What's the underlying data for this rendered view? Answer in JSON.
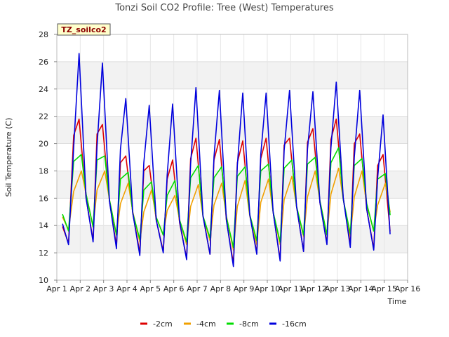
{
  "chart_data": {
    "type": "line",
    "title": "Tonzi Soil CO2 Profile: Tree (West) Temperatures",
    "xlabel": "Time",
    "ylabel": "Soil Temperature (C)",
    "badge": "TZ_soilco2",
    "ylim": [
      10,
      28
    ],
    "xlim": [
      1,
      16
    ],
    "x_ticks": [
      1,
      2,
      3,
      4,
      5,
      6,
      7,
      8,
      9,
      10,
      11,
      12,
      13,
      14,
      15,
      16
    ],
    "x_tick_labels": [
      "Apr 1",
      "Apr 2",
      "Apr 3",
      "Apr 4",
      "Apr 5",
      "Apr 6",
      "Apr 7",
      "Apr 8",
      "Apr 9",
      "Apr 10",
      "Apr 11",
      "Apr 12",
      "Apr 13",
      "Apr 14",
      "Apr 15",
      "Apr 16"
    ],
    "y_ticks": [
      10,
      12,
      14,
      16,
      18,
      20,
      22,
      24,
      26,
      28
    ],
    "grid": true,
    "legend_position": "bottom",
    "series": [
      {
        "name": "-2cm",
        "color": "#dd0000",
        "x": [
          1.25,
          1.5,
          1.72,
          1.95,
          2.25,
          2.55,
          2.72,
          2.95,
          3.25,
          3.55,
          3.72,
          3.95,
          4.25,
          4.55,
          4.72,
          4.95,
          5.25,
          5.55,
          5.72,
          5.95,
          6.25,
          6.55,
          6.72,
          6.95,
          7.25,
          7.55,
          7.72,
          7.95,
          8.25,
          8.55,
          8.72,
          8.95,
          9.25,
          9.55,
          9.72,
          9.95,
          10.25,
          10.55,
          10.72,
          10.95,
          11.25,
          11.55,
          11.72,
          11.95,
          12.25,
          12.55,
          12.72,
          12.95,
          13.25,
          13.55,
          13.72,
          13.95,
          14.25,
          14.55,
          14.72,
          14.95,
          15.25
        ],
        "y": [
          13.9,
          12.7,
          20.6,
          21.8,
          16.0,
          12.9,
          20.7,
          21.4,
          15.8,
          12.5,
          18.6,
          19.1,
          14.9,
          12.0,
          18.0,
          18.4,
          14.4,
          12.1,
          17.4,
          18.8,
          14.2,
          11.6,
          18.9,
          20.4,
          14.7,
          11.9,
          18.8,
          20.3,
          14.4,
          11.2,
          18.6,
          20.2,
          14.8,
          12.0,
          18.9,
          20.4,
          15.0,
          11.5,
          19.9,
          20.4,
          15.4,
          12.1,
          20.1,
          21.1,
          15.7,
          12.7,
          20.3,
          21.8,
          16.0,
          12.6,
          20.0,
          20.7,
          15.2,
          12.3,
          18.4,
          19.2,
          13.6
        ]
      },
      {
        "name": "-4cm",
        "color": "#f0a000",
        "x": [
          1.25,
          1.5,
          1.72,
          2.05,
          2.25,
          2.55,
          2.72,
          3.05,
          3.25,
          3.55,
          3.72,
          4.05,
          4.25,
          4.55,
          4.72,
          5.05,
          5.25,
          5.55,
          5.72,
          6.05,
          6.25,
          6.55,
          6.72,
          7.05,
          7.25,
          7.55,
          7.72,
          8.05,
          8.25,
          8.55,
          8.72,
          9.05,
          9.25,
          9.55,
          9.72,
          10.05,
          10.25,
          10.55,
          10.72,
          11.05,
          11.25,
          11.55,
          11.72,
          12.05,
          12.25,
          12.55,
          12.72,
          13.05,
          13.25,
          13.55,
          13.72,
          14.05,
          14.25,
          14.55,
          14.72,
          15.05,
          15.25
        ],
        "y": [
          14.6,
          13.7,
          16.5,
          18.0,
          16.3,
          13.9,
          16.6,
          18.0,
          15.9,
          13.3,
          15.6,
          17.1,
          15.0,
          12.8,
          15.0,
          16.6,
          14.6,
          13.3,
          15.1,
          16.2,
          14.4,
          12.6,
          15.4,
          17.0,
          14.7,
          12.9,
          15.5,
          17.1,
          14.7,
          12.2,
          15.4,
          17.3,
          14.7,
          12.6,
          15.7,
          17.4,
          15.0,
          12.6,
          15.9,
          17.6,
          15.4,
          13.2,
          16.1,
          18.0,
          15.8,
          13.3,
          16.3,
          18.2,
          15.9,
          13.2,
          16.1,
          18.0,
          15.5,
          13.6,
          15.5,
          17.1,
          15.0
        ]
      },
      {
        "name": "-8cm",
        "color": "#00dd00",
        "x": [
          1.25,
          1.5,
          1.72,
          2.05,
          2.25,
          2.55,
          2.72,
          3.05,
          3.25,
          3.55,
          3.72,
          4.05,
          4.25,
          4.55,
          4.72,
          5.05,
          5.25,
          5.55,
          5.72,
          6.05,
          6.25,
          6.55,
          6.72,
          7.05,
          7.25,
          7.55,
          7.72,
          8.05,
          8.25,
          8.55,
          8.72,
          9.05,
          9.25,
          9.55,
          9.72,
          10.05,
          10.25,
          10.55,
          10.72,
          11.05,
          11.25,
          11.55,
          11.72,
          12.05,
          12.25,
          12.55,
          12.72,
          13.05,
          13.25,
          13.55,
          13.72,
          14.05,
          14.25,
          14.55,
          14.72,
          15.05,
          15.25
        ],
        "y": [
          14.8,
          13.6,
          18.7,
          19.2,
          16.3,
          13.9,
          18.8,
          19.1,
          15.9,
          13.3,
          17.4,
          17.9,
          14.9,
          13.0,
          16.6,
          17.2,
          14.6,
          13.3,
          16.2,
          17.3,
          14.4,
          12.8,
          17.5,
          18.4,
          14.7,
          13.1,
          17.5,
          18.3,
          14.6,
          12.4,
          17.6,
          18.3,
          14.8,
          12.9,
          18.0,
          18.5,
          15.0,
          12.8,
          18.2,
          18.8,
          15.4,
          13.3,
          18.5,
          19.0,
          15.8,
          13.3,
          18.6,
          19.7,
          15.9,
          13.4,
          18.4,
          18.9,
          15.6,
          13.6,
          17.4,
          17.8,
          14.8
        ]
      },
      {
        "name": "-16cm",
        "color": "#0000dd",
        "x": [
          1.25,
          1.5,
          1.72,
          1.95,
          2.25,
          2.55,
          2.72,
          2.95,
          3.25,
          3.55,
          3.72,
          3.95,
          4.25,
          4.55,
          4.72,
          4.95,
          5.25,
          5.55,
          5.72,
          5.95,
          6.25,
          6.55,
          6.72,
          6.95,
          7.25,
          7.55,
          7.72,
          7.95,
          8.25,
          8.55,
          8.72,
          8.95,
          9.25,
          9.55,
          9.72,
          9.95,
          10.25,
          10.55,
          10.72,
          10.95,
          11.25,
          11.55,
          11.72,
          11.95,
          12.25,
          12.55,
          12.72,
          12.95,
          13.25,
          13.55,
          13.72,
          13.95,
          14.25,
          14.55,
          14.72,
          14.95,
          15.25
        ],
        "y": [
          14.1,
          12.6,
          19.7,
          26.6,
          16.0,
          12.8,
          19.8,
          25.9,
          15.8,
          12.3,
          19.6,
          23.3,
          14.9,
          11.8,
          18.6,
          22.8,
          14.4,
          12.0,
          17.7,
          22.9,
          14.3,
          11.5,
          18.5,
          24.1,
          14.7,
          11.9,
          19.0,
          23.9,
          14.4,
          11.0,
          18.4,
          23.7,
          14.8,
          11.9,
          19.2,
          23.7,
          15.0,
          11.4,
          19.5,
          23.9,
          15.4,
          12.1,
          19.6,
          23.8,
          15.7,
          12.6,
          19.7,
          24.5,
          16.0,
          12.4,
          19.0,
          23.9,
          15.2,
          12.2,
          17.5,
          22.1,
          13.4
        ]
      }
    ]
  }
}
